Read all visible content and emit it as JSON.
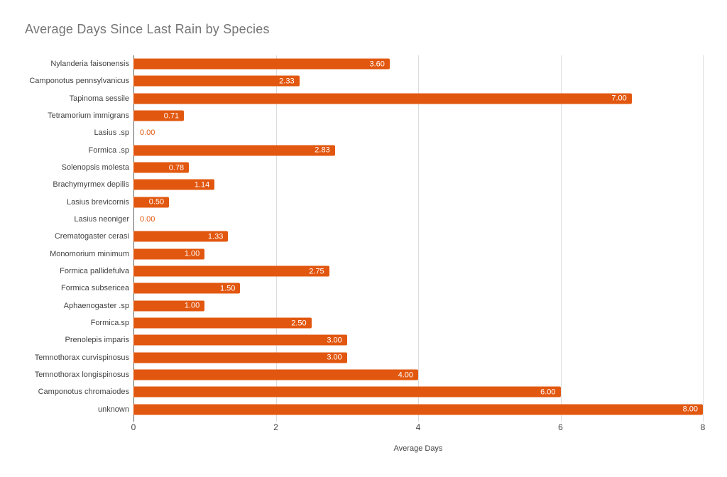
{
  "chart_data": {
    "type": "bar",
    "orientation": "horizontal",
    "title": "Average Days Since Last Rain by Species",
    "xlabel": "Average Days",
    "ylabel": "",
    "xlim": [
      0,
      8
    ],
    "x_ticks": [
      0,
      2,
      4,
      6,
      8
    ],
    "grid": true,
    "legend": "none",
    "categories": [
      "Nylanderia faisonensis",
      "Camponotus pennsylvanicus",
      "Tapinoma sessile",
      "Tetramorium immigrans",
      "Lasius .sp",
      "Formica .sp",
      "Solenopsis molesta",
      "Brachymyrmex depilis",
      "Lasius brevicornis",
      "Lasius neoniger",
      "Crematogaster cerasi",
      "Monomorium minimum",
      "Formica pallidefulva",
      "Formica subsericea",
      "Aphaenogaster .sp",
      "Formica.sp",
      "Prenolepis imparis",
      "Temnothorax curvispinosus",
      "Temnothorax longispinosus",
      "Camponotus chromaiodes",
      "unknown"
    ],
    "values": [
      3.6,
      2.33,
      7.0,
      0.71,
      0.0,
      2.83,
      0.78,
      1.14,
      0.5,
      0.0,
      1.33,
      1.0,
      2.75,
      1.5,
      1.0,
      2.5,
      3.0,
      3.0,
      4.0,
      6.0,
      8.0
    ],
    "value_labels": [
      "3.60",
      "2.33",
      "7.00",
      "0.71",
      "0.00",
      "2.83",
      "0.78",
      "1.14",
      "0.50",
      "0.00",
      "1.33",
      "1.00",
      "2.75",
      "1.50",
      "1.00",
      "2.50",
      "3.00",
      "3.00",
      "4.00",
      "6.00",
      "8.00"
    ]
  },
  "colors": {
    "bar": "#e2570f",
    "value_label_inside": "#ffffff",
    "zero_value_label": "#e2570f",
    "title_text": "#757575",
    "axis_text": "#424242",
    "gridline": "#dadce0",
    "axis_line": "#616161",
    "background": "#ffffff"
  }
}
